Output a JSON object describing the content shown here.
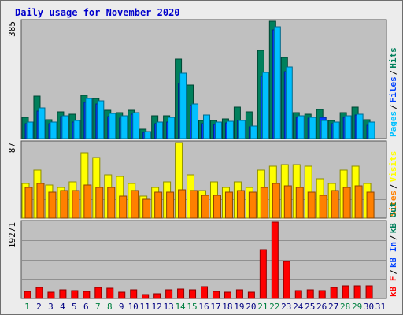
{
  "title": "Daily usage for November 2020",
  "colors": {
    "hits": "#00805c",
    "files": "#0040ff",
    "pages": "#00c0ff",
    "visits": "#ffff00",
    "sites": "#ff8000",
    "kbin": "#ff0000",
    "weekend_label": "#008040",
    "weekday_label": "#000080"
  },
  "chart_data": [
    {
      "type": "bar",
      "max_label": "385",
      "ylim": [
        0,
        385
      ],
      "categories": [
        "1",
        "2",
        "3",
        "4",
        "5",
        "6",
        "7",
        "8",
        "9",
        "10",
        "11",
        "12",
        "13",
        "14",
        "15",
        "16",
        "17",
        "18",
        "19",
        "20",
        "21",
        "22",
        "23",
        "24",
        "25",
        "26",
        "27",
        "28",
        "29",
        "30",
        "31"
      ],
      "weekend_days": [
        "1",
        "7",
        "8",
        "14",
        "15",
        "21",
        "22",
        "28",
        "29"
      ],
      "series": [
        {
          "name": "Hits",
          "values": [
            70,
            140,
            63,
            88,
            80,
            143,
            132,
            92,
            85,
            92,
            30,
            75,
            75,
            261,
            176,
            60,
            60,
            65,
            103,
            87,
            290,
            385,
            265,
            86,
            80,
            96,
            60,
            86,
            103,
            62,
            0
          ]
        },
        {
          "name": "Files",
          "values": [
            50,
            90,
            50,
            72,
            55,
            120,
            114,
            72,
            68,
            79,
            20,
            49,
            55,
            180,
            108,
            50,
            47,
            52,
            60,
            40,
            205,
            357,
            220,
            70,
            66,
            70,
            50,
            70,
            77,
            45,
            0
          ]
        },
        {
          "name": "Pages",
          "values": [
            55,
            100,
            55,
            75,
            60,
            132,
            124,
            82,
            74,
            84,
            22,
            55,
            70,
            215,
            113,
            78,
            55,
            56,
            60,
            42,
            218,
            368,
            236,
            75,
            70,
            60,
            55,
            75,
            80,
            55,
            0
          ]
        }
      ],
      "right_labels": [
        "Pages",
        "Files",
        "Hits"
      ]
    },
    {
      "type": "bar",
      "max_label": "87",
      "ylim": [
        0,
        87
      ],
      "categories": [
        "1",
        "2",
        "3",
        "4",
        "5",
        "6",
        "7",
        "8",
        "9",
        "10",
        "11",
        "12",
        "13",
        "14",
        "15",
        "16",
        "17",
        "18",
        "19",
        "20",
        "21",
        "22",
        "23",
        "24",
        "25",
        "26",
        "27",
        "28",
        "29",
        "30",
        "31"
      ],
      "series": [
        {
          "name": "Visits",
          "values": [
            40,
            55,
            38,
            35,
            42,
            75,
            70,
            50,
            48,
            40,
            25,
            35,
            42,
            87,
            50,
            32,
            42,
            35,
            42,
            35,
            55,
            60,
            62,
            62,
            60,
            45,
            40,
            55,
            60,
            40,
            0
          ]
        },
        {
          "name": "Sites",
          "values": [
            35,
            40,
            30,
            32,
            32,
            38,
            35,
            35,
            25,
            32,
            22,
            30,
            30,
            33,
            32,
            26,
            26,
            30,
            32,
            30,
            35,
            40,
            37,
            35,
            30,
            26,
            32,
            35,
            37,
            30,
            0
          ]
        }
      ],
      "right_labels": [
        "Sites",
        "Visits"
      ]
    },
    {
      "type": "bar",
      "max_label": "19271",
      "ylim": [
        0,
        19271
      ],
      "categories": [
        "1",
        "2",
        "3",
        "4",
        "5",
        "6",
        "7",
        "8",
        "9",
        "10",
        "11",
        "12",
        "13",
        "14",
        "15",
        "16",
        "17",
        "18",
        "19",
        "20",
        "21",
        "22",
        "23",
        "24",
        "25",
        "26",
        "27",
        "28",
        "29",
        "30",
        "31"
      ],
      "series": [
        {
          "name": "kB F",
          "values": [
            1857,
            2705,
            1591,
            2210,
            1944,
            1874,
            2775,
            2563,
            1591,
            2122,
            1060,
            1237,
            2210,
            2298,
            2122,
            2917,
            1768,
            1591,
            2210,
            1679,
            12284,
            19271,
            9373,
            1944,
            2210,
            1944,
            2829,
            3270,
            3094,
            3094,
            0
          ]
        }
      ],
      "right_labels": [
        "kB F",
        "kB In",
        "kB Out"
      ]
    }
  ]
}
